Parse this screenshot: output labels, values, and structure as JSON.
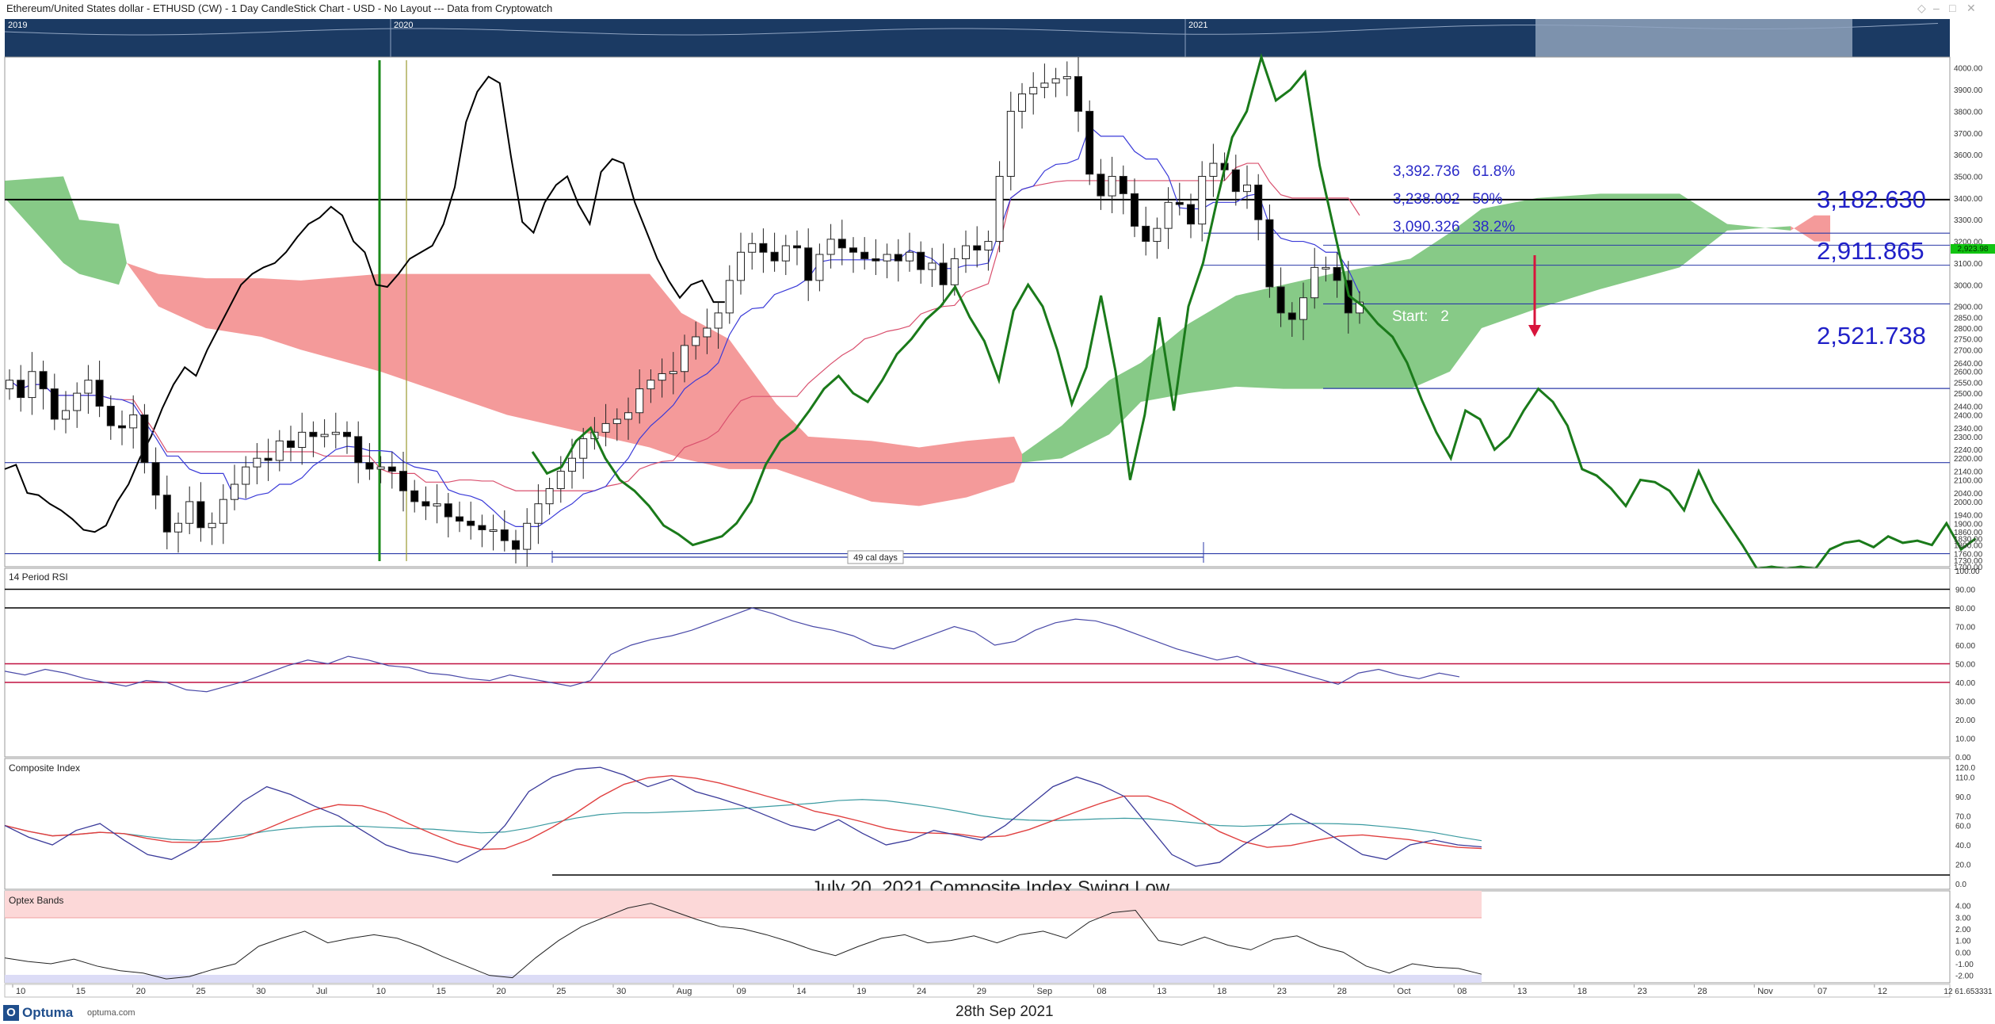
{
  "header": {
    "title": "Ethereum/United States dollar - ETHUSD (CW) - 1 Day CandleStick Chart - USD - No Layout --- Data from Cryptowatch"
  },
  "overview": {
    "labels": [
      "2019",
      "2020",
      "2021"
    ]
  },
  "annotations": {
    "fib_61": "3,392.736   61.8%",
    "fib_50": "3,238.002   50%",
    "fib_38": "3,090.326   38.2%",
    "level_3182": "3,182.630",
    "level_2911": "2,911.865",
    "level_2521": "2,521.738",
    "start_label": "Start:   2",
    "cal_days": "49 cal days",
    "composite_note": "July 20, 2021 Composite Index Swing Low",
    "current_price": "2,923.98"
  },
  "panels": {
    "rsi": "14 Period RSI",
    "composite": "Composite Index",
    "optex": "Optex Bands"
  },
  "footer": {
    "logo": "Optuma",
    "url": "optuma.com",
    "date": "28th Sep 2021",
    "zoom_label": "12 61.653331"
  },
  "colors": {
    "bear_cloud": "#f07878",
    "bull_cloud": "#5fb85f",
    "chikou": "#1a7a1a",
    "overview_bg": "#1b3a63",
    "fib_text": "#2b2bc8"
  },
  "chart_data": [
    {
      "type": "candlestick",
      "title": "ETHUSD 1 Day",
      "ylim": [
        1700,
        4050
      ],
      "x_tick_labels": [
        "10",
        "15",
        "20",
        "25",
        "30",
        "Jul",
        "10",
        "15",
        "20",
        "25",
        "30",
        "Aug",
        "09",
        "14",
        "19",
        "24",
        "29",
        "Sep",
        "08",
        "13",
        "18",
        "23",
        "28",
        "Oct",
        "08",
        "13",
        "18",
        "23",
        "28",
        "Nov",
        "07",
        "12"
      ],
      "y_tick_labels": [
        "4000.00",
        "3900.00",
        "3800.00",
        "3700.00",
        "3600.00",
        "3500.00",
        "3400.00",
        "3300.00",
        "3200.00",
        "3100.00",
        "3000.00",
        "2900.00",
        "2850.00",
        "2800.00",
        "2750.00",
        "2700.00",
        "2640.00",
        "2600.00",
        "2550.00",
        "2500.00",
        "2440.00",
        "2400.00",
        "2340.00",
        "2300.00",
        "2240.00",
        "2200.00",
        "2140.00",
        "2100.00",
        "2040.00",
        "2000.00",
        "1940.00",
        "1900.00",
        "1860.00",
        "1830.00",
        "1800.00",
        "1760.00",
        "1730.00",
        "1700.00"
      ],
      "horizontal_levels": [
        3392.736,
        3238.002,
        3182.63,
        3090.326,
        2911.865,
        2521.738,
        2180,
        1760
      ],
      "closes": [
        2560,
        2480,
        2600,
        2520,
        2380,
        2420,
        2500,
        2560,
        2440,
        2350,
        2340,
        2400,
        2180,
        2030,
        1860,
        1900,
        2000,
        1880,
        1900,
        2010,
        2080,
        2160,
        2200,
        2190,
        2280,
        2250,
        2320,
        2300,
        2310,
        2320,
        2300,
        2180,
        2150,
        2160,
        2140,
        2050,
        2000,
        1980,
        1990,
        1930,
        1910,
        1890,
        1870,
        1870,
        1820,
        1780,
        1900,
        1990,
        2060,
        2140,
        2200,
        2290,
        2320,
        2360,
        2380,
        2410,
        2520,
        2560,
        2590,
        2600,
        2720,
        2760,
        2800,
        2870,
        3020,
        3150,
        3190,
        3150,
        3110,
        3180,
        3170,
        3020,
        3140,
        3210,
        3170,
        3150,
        3120,
        3110,
        3140,
        3110,
        3150,
        3070,
        3100,
        3000,
        3120,
        3180,
        3160,
        3200,
        3500,
        3800,
        3880,
        3910,
        3930,
        3950,
        3960,
        3800,
        3510,
        3410,
        3500,
        3420,
        3270,
        3200,
        3260,
        3380,
        3370,
        3280,
        3500,
        3560,
        3530,
        3430,
        3460,
        3300,
        2990,
        2870,
        2840,
        2940,
        3080,
        3080,
        3020,
        2870,
        2920
      ]
    },
    {
      "type": "line",
      "title": "14 Period RSI",
      "ylim": [
        0,
        100
      ],
      "levels": [
        90,
        80,
        50,
        40
      ],
      "y_tick_labels": [
        "100.00",
        "90.00",
        "80.00",
        "70.00",
        "60.00",
        "50.00",
        "40.00",
        "30.00",
        "20.00",
        "10.00",
        "0.00"
      ]
    },
    {
      "type": "line",
      "title": "Composite Index",
      "ylim": [
        0,
        125
      ],
      "y_tick_labels": [
        "120.0",
        "110.0",
        "90.0",
        "70.0",
        "60.0",
        "40.0",
        "20.0",
        "0.0"
      ]
    },
    {
      "type": "line",
      "title": "Optex Bands",
      "ylim": [
        -2.5,
        5
      ],
      "y_tick_labels": [
        "4.00",
        "3.00",
        "2.00",
        "1.00",
        "0.00",
        "-1.00",
        "-2.00"
      ]
    }
  ]
}
